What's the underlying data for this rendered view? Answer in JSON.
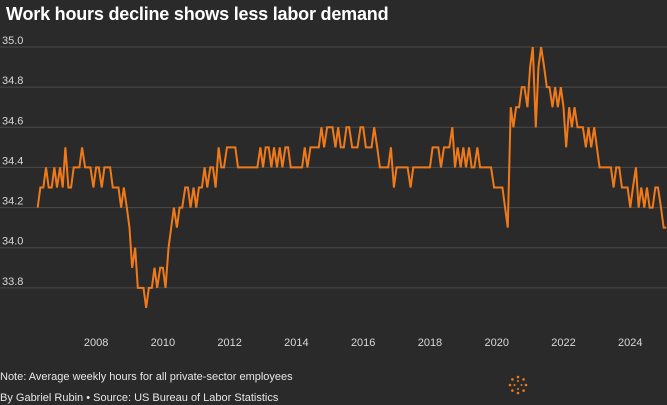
{
  "title": "Work hours decline shows less labor demand",
  "note": "Note: Average weekly hours for all private-sector employees",
  "byline": "By Gabriel Rubin • Source: US Bureau of Labor Statistics",
  "colors": {
    "background": "#2a2a2a",
    "line": "#f07a1a",
    "grid": "#4a4a4a",
    "text": "#ffffff",
    "tick_text": "#d8d8d8"
  },
  "chart_data": {
    "type": "line",
    "title": "Work hours decline shows less labor demand",
    "xlabel": "",
    "ylabel": "",
    "xlim": [
      2006.2,
      2025.1
    ],
    "ylim": [
      33.6,
      35.0
    ],
    "x_ticks": [
      "2008",
      "2010",
      "2012",
      "2014",
      "2016",
      "2018",
      "2020",
      "2022",
      "2024"
    ],
    "y_ticks": [
      "35.0",
      "34.8",
      "34.6",
      "34.4",
      "34.2",
      "34.0",
      "33.8"
    ],
    "grid": true,
    "series": [
      {
        "values": [
          [
            2006.25,
            34.2
          ],
          [
            2006.33,
            34.3
          ],
          [
            2006.42,
            34.3
          ],
          [
            2006.5,
            34.4
          ],
          [
            2006.58,
            34.3
          ],
          [
            2006.67,
            34.3
          ],
          [
            2006.75,
            34.4
          ],
          [
            2006.83,
            34.3
          ],
          [
            2006.92,
            34.4
          ],
          [
            2007.0,
            34.3
          ],
          [
            2007.08,
            34.5
          ],
          [
            2007.17,
            34.3
          ],
          [
            2007.25,
            34.3
          ],
          [
            2007.33,
            34.4
          ],
          [
            2007.42,
            34.4
          ],
          [
            2007.5,
            34.4
          ],
          [
            2007.58,
            34.5
          ],
          [
            2007.67,
            34.4
          ],
          [
            2007.75,
            34.4
          ],
          [
            2007.83,
            34.4
          ],
          [
            2007.92,
            34.3
          ],
          [
            2008.0,
            34.4
          ],
          [
            2008.08,
            34.4
          ],
          [
            2008.17,
            34.3
          ],
          [
            2008.25,
            34.4
          ],
          [
            2008.33,
            34.4
          ],
          [
            2008.42,
            34.4
          ],
          [
            2008.5,
            34.3
          ],
          [
            2008.58,
            34.3
          ],
          [
            2008.67,
            34.3
          ],
          [
            2008.75,
            34.2
          ],
          [
            2008.83,
            34.3
          ],
          [
            2008.92,
            34.2
          ],
          [
            2009.0,
            34.1
          ],
          [
            2009.08,
            33.9
          ],
          [
            2009.17,
            34.0
          ],
          [
            2009.25,
            33.8
          ],
          [
            2009.33,
            33.8
          ],
          [
            2009.42,
            33.8
          ],
          [
            2009.5,
            33.7
          ],
          [
            2009.58,
            33.8
          ],
          [
            2009.67,
            33.8
          ],
          [
            2009.75,
            33.9
          ],
          [
            2009.83,
            33.8
          ],
          [
            2009.92,
            33.9
          ],
          [
            2010.0,
            33.9
          ],
          [
            2010.08,
            33.8
          ],
          [
            2010.17,
            34.0
          ],
          [
            2010.25,
            34.1
          ],
          [
            2010.33,
            34.2
          ],
          [
            2010.42,
            34.1
          ],
          [
            2010.5,
            34.2
          ],
          [
            2010.58,
            34.2
          ],
          [
            2010.67,
            34.3
          ],
          [
            2010.75,
            34.3
          ],
          [
            2010.83,
            34.2
          ],
          [
            2010.92,
            34.3
          ],
          [
            2011.0,
            34.2
          ],
          [
            2011.08,
            34.3
          ],
          [
            2011.17,
            34.3
          ],
          [
            2011.25,
            34.4
          ],
          [
            2011.33,
            34.3
          ],
          [
            2011.42,
            34.4
          ],
          [
            2011.5,
            34.4
          ],
          [
            2011.58,
            34.3
          ],
          [
            2011.67,
            34.5
          ],
          [
            2011.75,
            34.4
          ],
          [
            2011.83,
            34.4
          ],
          [
            2011.92,
            34.5
          ],
          [
            2012.0,
            34.5
          ],
          [
            2012.08,
            34.5
          ],
          [
            2012.17,
            34.5
          ],
          [
            2012.25,
            34.4
          ],
          [
            2012.33,
            34.4
          ],
          [
            2012.42,
            34.4
          ],
          [
            2012.5,
            34.4
          ],
          [
            2012.58,
            34.4
          ],
          [
            2012.67,
            34.4
          ],
          [
            2012.75,
            34.4
          ],
          [
            2012.83,
            34.4
          ],
          [
            2012.92,
            34.5
          ],
          [
            2013.0,
            34.4
          ],
          [
            2013.08,
            34.5
          ],
          [
            2013.17,
            34.5
          ],
          [
            2013.25,
            34.4
          ],
          [
            2013.33,
            34.5
          ],
          [
            2013.42,
            34.4
          ],
          [
            2013.5,
            34.5
          ],
          [
            2013.58,
            34.4
          ],
          [
            2013.67,
            34.5
          ],
          [
            2013.75,
            34.5
          ],
          [
            2013.83,
            34.4
          ],
          [
            2013.92,
            34.4
          ],
          [
            2014.0,
            34.4
          ],
          [
            2014.08,
            34.4
          ],
          [
            2014.17,
            34.4
          ],
          [
            2014.25,
            34.5
          ],
          [
            2014.33,
            34.4
          ],
          [
            2014.42,
            34.5
          ],
          [
            2014.5,
            34.5
          ],
          [
            2014.58,
            34.5
          ],
          [
            2014.67,
            34.5
          ],
          [
            2014.75,
            34.6
          ],
          [
            2014.83,
            34.5
          ],
          [
            2014.92,
            34.6
          ],
          [
            2015.0,
            34.6
          ],
          [
            2015.08,
            34.6
          ],
          [
            2015.17,
            34.5
          ],
          [
            2015.25,
            34.6
          ],
          [
            2015.33,
            34.5
          ],
          [
            2015.42,
            34.5
          ],
          [
            2015.5,
            34.6
          ],
          [
            2015.58,
            34.6
          ],
          [
            2015.67,
            34.5
          ],
          [
            2015.75,
            34.5
          ],
          [
            2015.83,
            34.5
          ],
          [
            2015.92,
            34.6
          ],
          [
            2016.0,
            34.6
          ],
          [
            2016.08,
            34.5
          ],
          [
            2016.17,
            34.5
          ],
          [
            2016.25,
            34.5
          ],
          [
            2016.33,
            34.6
          ],
          [
            2016.42,
            34.5
          ],
          [
            2016.5,
            34.4
          ],
          [
            2016.58,
            34.4
          ],
          [
            2016.67,
            34.4
          ],
          [
            2016.75,
            34.4
          ],
          [
            2016.83,
            34.5
          ],
          [
            2016.92,
            34.3
          ],
          [
            2017.0,
            34.4
          ],
          [
            2017.08,
            34.4
          ],
          [
            2017.17,
            34.4
          ],
          [
            2017.25,
            34.4
          ],
          [
            2017.33,
            34.4
          ],
          [
            2017.42,
            34.3
          ],
          [
            2017.5,
            34.4
          ],
          [
            2017.58,
            34.4
          ],
          [
            2017.67,
            34.4
          ],
          [
            2017.75,
            34.4
          ],
          [
            2017.83,
            34.4
          ],
          [
            2017.92,
            34.4
          ],
          [
            2018.0,
            34.4
          ],
          [
            2018.08,
            34.5
          ],
          [
            2018.17,
            34.5
          ],
          [
            2018.25,
            34.5
          ],
          [
            2018.33,
            34.4
          ],
          [
            2018.42,
            34.5
          ],
          [
            2018.5,
            34.5
          ],
          [
            2018.58,
            34.5
          ],
          [
            2018.67,
            34.6
          ],
          [
            2018.75,
            34.4
          ],
          [
            2018.83,
            34.5
          ],
          [
            2018.92,
            34.4
          ],
          [
            2019.0,
            34.5
          ],
          [
            2019.08,
            34.4
          ],
          [
            2019.17,
            34.5
          ],
          [
            2019.25,
            34.4
          ],
          [
            2019.33,
            34.4
          ],
          [
            2019.42,
            34.5
          ],
          [
            2019.5,
            34.4
          ],
          [
            2019.58,
            34.4
          ],
          [
            2019.67,
            34.4
          ],
          [
            2019.75,
            34.4
          ],
          [
            2019.83,
            34.4
          ],
          [
            2019.92,
            34.3
          ],
          [
            2020.0,
            34.3
          ],
          [
            2020.08,
            34.3
          ],
          [
            2020.17,
            34.3
          ],
          [
            2020.25,
            34.2
          ],
          [
            2020.33,
            34.1
          ],
          [
            2020.42,
            34.7
          ],
          [
            2020.5,
            34.6
          ],
          [
            2020.58,
            34.7
          ],
          [
            2020.67,
            34.7
          ],
          [
            2020.75,
            34.8
          ],
          [
            2020.83,
            34.8
          ],
          [
            2020.92,
            34.7
          ],
          [
            2021.0,
            34.9
          ],
          [
            2021.08,
            35.0
          ],
          [
            2021.17,
            34.6
          ],
          [
            2021.25,
            34.9
          ],
          [
            2021.33,
            35.0
          ],
          [
            2021.42,
            34.9
          ],
          [
            2021.5,
            34.8
          ],
          [
            2021.58,
            34.8
          ],
          [
            2021.67,
            34.7
          ],
          [
            2021.75,
            34.8
          ],
          [
            2021.83,
            34.7
          ],
          [
            2021.92,
            34.8
          ],
          [
            2022.0,
            34.7
          ],
          [
            2022.08,
            34.5
          ],
          [
            2022.17,
            34.7
          ],
          [
            2022.25,
            34.6
          ],
          [
            2022.33,
            34.7
          ],
          [
            2022.42,
            34.6
          ],
          [
            2022.5,
            34.6
          ],
          [
            2022.58,
            34.6
          ],
          [
            2022.67,
            34.5
          ],
          [
            2022.75,
            34.6
          ],
          [
            2022.83,
            34.5
          ],
          [
            2022.92,
            34.6
          ],
          [
            2023.0,
            34.5
          ],
          [
            2023.08,
            34.4
          ],
          [
            2023.17,
            34.4
          ],
          [
            2023.25,
            34.4
          ],
          [
            2023.33,
            34.4
          ],
          [
            2023.42,
            34.4
          ],
          [
            2023.5,
            34.3
          ],
          [
            2023.58,
            34.4
          ],
          [
            2023.67,
            34.4
          ],
          [
            2023.75,
            34.3
          ],
          [
            2023.83,
            34.3
          ],
          [
            2023.92,
            34.3
          ],
          [
            2024.0,
            34.2
          ],
          [
            2024.08,
            34.3
          ],
          [
            2024.17,
            34.4
          ],
          [
            2024.25,
            34.2
          ],
          [
            2024.33,
            34.3
          ],
          [
            2024.42,
            34.2
          ],
          [
            2024.5,
            34.3
          ],
          [
            2024.58,
            34.2
          ],
          [
            2024.67,
            34.2
          ],
          [
            2024.75,
            34.3
          ],
          [
            2024.83,
            34.3
          ],
          [
            2024.92,
            34.2
          ],
          [
            2025.0,
            34.1
          ],
          [
            2025.08,
            34.1
          ]
        ]
      }
    ]
  }
}
